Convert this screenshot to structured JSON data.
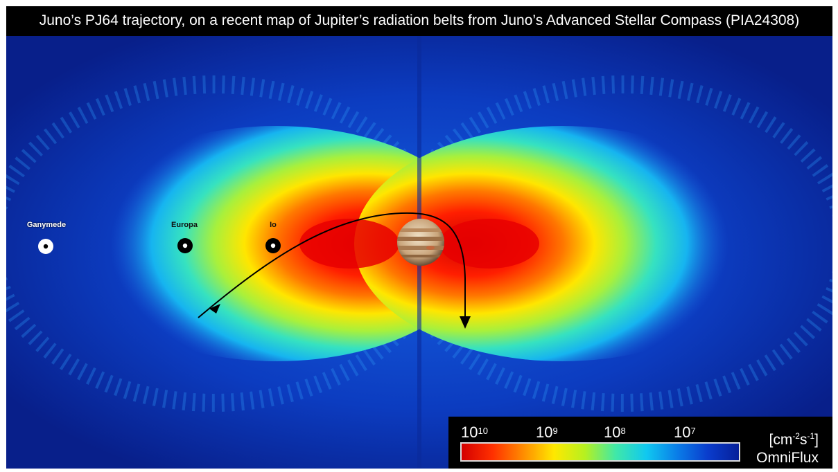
{
  "title": "Juno’s PJ64 trajectory, on a recent map of Jupiter’s radiation belts from Juno’s Advanced Stellar Compass (PIA24308)",
  "moons": [
    {
      "name": "Ganymede",
      "ring": "white"
    },
    {
      "name": "Europa",
      "ring": "black"
    },
    {
      "name": "Io",
      "ring": "black"
    }
  ],
  "planet": "jupiter-icon",
  "trajectory": {
    "direction_marker": "arrow-icon"
  },
  "colorbar": {
    "ticks": [
      {
        "base": "10",
        "exp": "10"
      },
      {
        "base": "10",
        "exp": "9"
      },
      {
        "base": "10",
        "exp": "8"
      },
      {
        "base": "10",
        "exp": "7"
      }
    ],
    "units": {
      "prefix": "[cm",
      "exp1": "-2",
      "mid": "s",
      "exp2": "-1",
      "suffix": "]"
    },
    "name": "OmniFlux",
    "colors": [
      "#d40000",
      "#ff3000",
      "#ff8c00",
      "#ffe800",
      "#b6f020",
      "#40e8a8",
      "#10c8f0",
      "#0a7de8",
      "#0a3ccc",
      "#06209a"
    ]
  }
}
